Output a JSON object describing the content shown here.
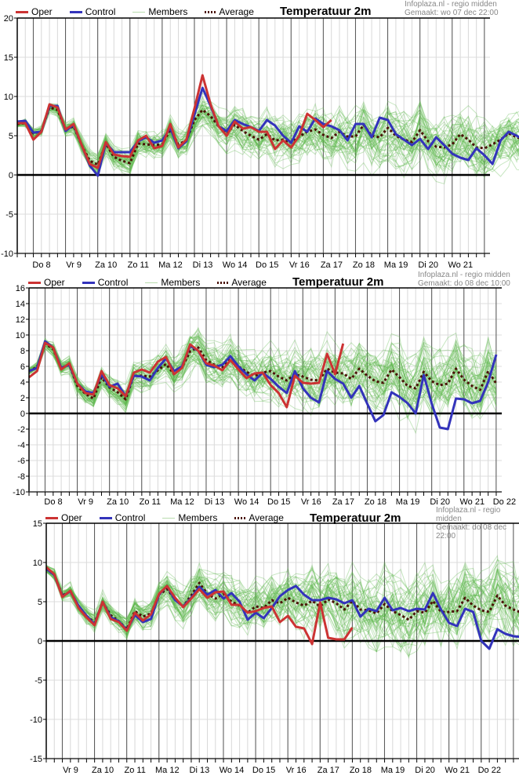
{
  "legend": {
    "oper": "Oper",
    "control": "Control",
    "members": "Members",
    "average": "Average"
  },
  "colors": {
    "oper": "#cc3333",
    "control": "#3333bb",
    "members": "#5cb84a",
    "average": "#4a1206",
    "zero_line": "#000000"
  },
  "chart_data": [
    {
      "type": "line",
      "title": "Temperatuur 2m",
      "credit_line1": "Infoplaza.nl - regio midden",
      "credit_line2": "Gemaakt: wo 07 dec 22:00",
      "xlabel": "",
      "ylabel": "",
      "ylim": [
        -10,
        20
      ],
      "yticks": [
        20,
        15,
        10,
        5,
        0,
        -5,
        -10
      ],
      "xticks": [
        "Do 8",
        "Vr 9",
        "Za 10",
        "Zo 11",
        "Ma 12",
        "Di 13",
        "Wo 14",
        "Do 15",
        "Vr 16",
        "Za 17",
        "Zo 18",
        "Ma 19",
        "Di 20",
        "Wo 21"
      ],
      "grid": true,
      "legend_position": "top-left",
      "steps_per_day": 4,
      "series": [
        {
          "name": "Oper",
          "values": [
            6.6,
            6.6,
            4.5,
            5.5,
            9.0,
            8.6,
            5.8,
            6.5,
            3.8,
            1.4,
            0.9,
            4.2,
            2.6,
            2.4,
            2.3,
            4.4,
            5.0,
            3.4,
            3.7,
            6.5,
            3.5,
            4.5,
            8.5,
            12.7,
            9.0,
            6.2,
            5.0,
            6.8,
            5.9,
            6.1,
            5.5,
            5.5,
            3.3,
            4.4,
            3.5,
            5.0,
            7.8,
            7.0,
            6.1,
            7.0
          ]
        },
        {
          "name": "Control",
          "values": [
            6.8,
            6.9,
            5.4,
            5.5,
            8.8,
            8.8,
            5.6,
            6.4,
            3.8,
            1.2,
            -0.1,
            4.1,
            2.9,
            2.9,
            2.9,
            4.3,
            4.8,
            4.1,
            4.4,
            6.0,
            3.4,
            4.3,
            7.7,
            11.1,
            8.8,
            6.2,
            5.6,
            7.0,
            6.5,
            6.1,
            5.6,
            7.0,
            6.3,
            5.0,
            4.1,
            6.2,
            5.5,
            7.2,
            6.5,
            6.2,
            5.7,
            4.4,
            6.5,
            6.5,
            4.8,
            7.3,
            7.0,
            5.2,
            4.5,
            3.8,
            4.6,
            3.3,
            4.8,
            3.8,
            2.7,
            2.2,
            1.9,
            3.4,
            2.5,
            1.4,
            4.4,
            5.5,
            5.0,
            4.4,
            4.3,
            5.0
          ]
        },
        {
          "name": "Average",
          "values": [
            6.5,
            6.6,
            5.3,
            5.6,
            8.6,
            8.3,
            5.8,
            6.2,
            3.8,
            1.8,
            1.3,
            4.0,
            2.3,
            1.8,
            1.5,
            4.0,
            3.9,
            3.8,
            3.9,
            5.8,
            3.9,
            4.4,
            7.0,
            8.3,
            7.5,
            6.2,
            5.3,
            6.4,
            5.6,
            5.0,
            4.5,
            5.2,
            4.4,
            4.5,
            4.1,
            4.9,
            5.5,
            5.8,
            5.1,
            4.7,
            5.5,
            4.9,
            4.9,
            6.4,
            5.0,
            4.8,
            6.0,
            5.0,
            4.5,
            4.2,
            5.7,
            4.3,
            3.6,
            3.5,
            3.9,
            5.2,
            4.5,
            3.5,
            3.4,
            3.9,
            4.5,
            5.3,
            4.8,
            4.5,
            3.9,
            4.8
          ]
        }
      ],
      "members_spread": {
        "low_offset": -3.0,
        "high_offset": 3.0,
        "count": 50
      }
    },
    {
      "type": "line",
      "title": "Temperatuur 2m",
      "credit_line1": "Infoplaza.nl - regio midden",
      "credit_line2": "Gemaakt: do 08 dec 10:00",
      "xlabel": "",
      "ylabel": "",
      "ylim": [
        -10,
        16
      ],
      "yticks": [
        16,
        14,
        12,
        10,
        8,
        6,
        4,
        2,
        0,
        -2,
        -4,
        -6,
        -8,
        -10
      ],
      "xticks": [
        "Do 8",
        "Vr 9",
        "Za 10",
        "Zo 11",
        "Ma 12",
        "Di 13",
        "Wo 14",
        "Do 15",
        "Vr 16",
        "Za 17",
        "Zo 18",
        "Ma 19",
        "Di 20",
        "Wo 21",
        "Do 22"
      ],
      "grid": true,
      "legend_position": "top-left",
      "steps_per_day": 4,
      "series": [
        {
          "name": "Oper",
          "values": [
            4.6,
            5.4,
            9.0,
            8.4,
            5.6,
            6.4,
            3.8,
            2.6,
            2.4,
            5.4,
            3.6,
            3.2,
            2.2,
            5.2,
            5.6,
            5.2,
            6.6,
            7.2,
            5.0,
            5.8,
            8.8,
            8.0,
            6.4,
            6.1,
            5.5,
            6.8,
            5.6,
            4.5,
            5.1,
            5.2,
            3.6,
            2.6,
            0.8,
            4.8,
            3.9,
            3.8,
            3.9,
            7.6,
            5.0,
            8.9
          ]
        },
        {
          "name": "Control",
          "values": [
            5.4,
            5.8,
            9.2,
            8.4,
            5.8,
            6.2,
            3.8,
            2.8,
            2.6,
            5.0,
            3.4,
            3.8,
            2.2,
            4.8,
            4.7,
            4.2,
            5.8,
            7.0,
            5.4,
            6.0,
            8.6,
            8.0,
            6.2,
            5.9,
            6.2,
            7.3,
            6.0,
            5.0,
            4.2,
            5.2,
            4.4,
            3.4,
            2.6,
            5.4,
            3.2,
            2.0,
            1.4,
            5.4,
            4.4,
            3.8,
            2.0,
            3.5,
            1.2,
            -1.0,
            -0.2,
            2.7,
            2.1,
            1.3,
            0.0,
            4.9,
            1.2,
            -1.8,
            -2.0,
            1.9,
            1.8,
            1.3,
            1.6,
            4.0,
            7.5
          ]
        },
        {
          "name": "Average",
          "values": [
            5.4,
            5.9,
            8.9,
            8.2,
            5.8,
            6.2,
            3.5,
            2.5,
            1.9,
            4.6,
            3.3,
            2.7,
            1.8,
            4.8,
            4.8,
            4.7,
            5.5,
            6.3,
            5.0,
            5.9,
            7.9,
            8.4,
            6.8,
            6.2,
            5.9,
            6.9,
            6.0,
            5.3,
            4.8,
            5.2,
            5.4,
            4.7,
            4.2,
            5.0,
            4.7,
            4.3,
            4.2,
            5.7,
            5.2,
            5.1,
            4.4,
            5.7,
            4.8,
            4.1,
            3.9,
            5.6,
            4.6,
            3.5,
            3.2,
            5.3,
            4.1,
            3.6,
            3.8,
            5.7,
            4.3,
            3.5,
            3.0,
            5.4,
            3.8
          ]
        }
      ],
      "members_spread": {
        "low_offset": -3.5,
        "high_offset": 3.5,
        "count": 50
      }
    },
    {
      "type": "line",
      "title": "Temperatuur 2m",
      "credit_line1": "Infoplaza.nl - regio midden",
      "credit_line2": "Gemaakt: do 08 dec 22:00",
      "xlabel": "",
      "ylabel": "",
      "ylim": [
        -15,
        15
      ],
      "yticks": [
        15,
        10,
        5,
        0,
        -5,
        -10,
        -15
      ],
      "xticks": [
        "Vr 9",
        "Za 10",
        "Zo 11",
        "Ma 12",
        "Di 13",
        "Wo 14",
        "Do 15",
        "Vr 16",
        "Za 17",
        "Zo 18",
        "Ma 19",
        "Di 20",
        "Wo 21",
        "Do 22"
      ],
      "grid": true,
      "legend_position": "top-left",
      "steps_per_day": 4,
      "series": [
        {
          "name": "Oper",
          "values": [
            9.4,
            8.5,
            5.6,
            6.4,
            4.2,
            3.0,
            2.0,
            5.0,
            2.8,
            2.4,
            1.3,
            3.6,
            2.6,
            3.4,
            6.0,
            7.0,
            5.5,
            4.3,
            5.4,
            6.6,
            5.5,
            6.2,
            6.3,
            4.6,
            4.6,
            3.6,
            3.8,
            4.2,
            4.4,
            2.4,
            3.2,
            1.8,
            1.6,
            -0.4,
            4.9,
            0.4,
            0.2,
            0.2,
            1.7
          ]
        },
        {
          "name": "Control",
          "values": [
            9.2,
            8.4,
            5.7,
            6.3,
            4.5,
            3.2,
            2.1,
            5.0,
            3.0,
            2.5,
            1.4,
            3.3,
            2.4,
            2.8,
            5.9,
            7.0,
            5.2,
            4.4,
            5.5,
            6.9,
            5.9,
            6.5,
            5.4,
            6.1,
            5.0,
            2.7,
            3.6,
            2.9,
            4.2,
            5.7,
            6.5,
            7.0,
            5.9,
            5.2,
            5.2,
            5.5,
            5.3,
            4.8,
            5.2,
            3.1,
            4.1,
            3.8,
            5.5,
            3.9,
            4.2,
            3.8,
            4.1,
            4.0,
            6.1,
            4.0,
            2.3,
            1.9,
            4.1,
            3.7,
            0.0,
            -1.0,
            1.5,
            0.9,
            0.6,
            0.5,
            0.5,
            0.7
          ]
        },
        {
          "name": "Average",
          "values": [
            9.2,
            8.4,
            5.8,
            6.3,
            4.4,
            3.2,
            2.3,
            4.9,
            3.3,
            2.5,
            1.5,
            3.8,
            3.1,
            3.5,
            5.9,
            6.6,
            5.3,
            4.4,
            5.8,
            7.4,
            6.0,
            5.4,
            6.0,
            5.0,
            4.5,
            3.6,
            4.4,
            4.2,
            5.2,
            4.8,
            5.5,
            4.9,
            4.5,
            5.1,
            4.4,
            5.3,
            4.8,
            4.0,
            5.1,
            4.0,
            3.9,
            3.5,
            4.7,
            3.8,
            3.3,
            2.7,
            3.8,
            3.6,
            5.1,
            3.7,
            3.7,
            3.8,
            5.5,
            4.5,
            3.9,
            3.7,
            5.8,
            4.5,
            4.0,
            3.6,
            5.5,
            4.1
          ]
        }
      ],
      "members_spread": {
        "low_offset": -4.0,
        "high_offset": 4.0,
        "count": 50
      }
    }
  ]
}
